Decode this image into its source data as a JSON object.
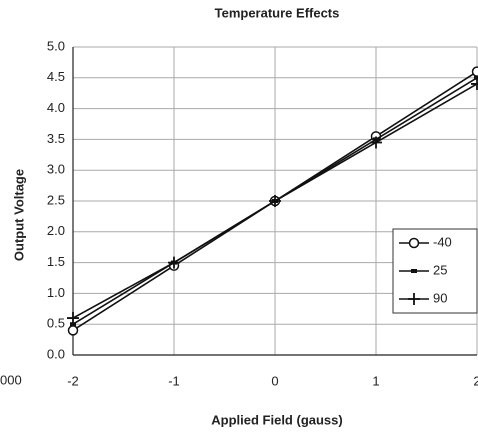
{
  "chart_data": {
    "type": "line",
    "title": "Temperature Effects",
    "xlabel": "Applied Field (gauss)",
    "ylabel": "Output Voltage",
    "x": [
      -2,
      -1,
      0,
      1,
      2
    ],
    "series": [
      {
        "name": "-40",
        "color": "#111111",
        "marker": "circle",
        "values": [
          0.4,
          1.45,
          2.5,
          3.55,
          4.6
        ]
      },
      {
        "name": "25",
        "color": "#111111",
        "marker": "square",
        "values": [
          0.5,
          1.5,
          2.5,
          3.5,
          4.5
        ]
      },
      {
        "name": "90",
        "color": "#111111",
        "marker": "plus",
        "values": [
          0.6,
          1.5,
          2.5,
          3.45,
          4.4
        ]
      }
    ],
    "xlim": [
      -2,
      2
    ],
    "xticks": [
      -2,
      -1,
      0,
      1,
      2
    ],
    "ylim": [
      0,
      5
    ],
    "yticks": [
      {
        "value": 0,
        "label": "0.0"
      },
      0.5,
      {
        "value": 1,
        "label": "1.0"
      },
      1.5,
      {
        "value": 2,
        "label": "2.0"
      },
      2.5,
      {
        "value": 3,
        "label": "3.0"
      },
      3.5,
      {
        "value": 4,
        "label": "4.0"
      },
      4.5,
      {
        "value": 5,
        "label": "5.0"
      }
    ],
    "grid": true,
    "legend": "center right",
    "annotations": [
      "000"
    ]
  }
}
